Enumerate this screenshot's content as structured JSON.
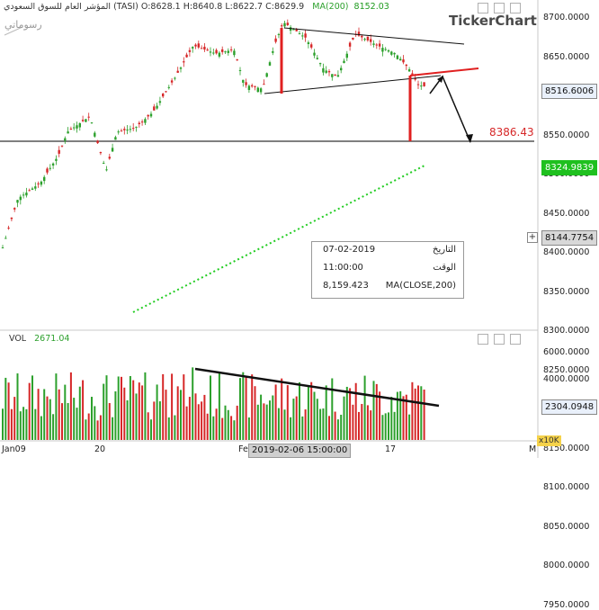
{
  "header": {
    "symbol": "المؤشر العام للسوق السعودي (TASI)",
    "open": "O:8628.1",
    "high": "H:8640.8",
    "low": "L:8622.7",
    "close": "C:8629.9",
    "ma_label": "MA(200)",
    "ma_value": "8152.03"
  },
  "watermark_left": "رسوماتي",
  "logo_text": "TickerChart",
  "y_axis": {
    "ticks": [
      "8700.0000",
      "8650.0000",
      "8600.0000",
      "8550.0000",
      "8500.0000",
      "8450.0000",
      "8400.0000",
      "8350.0000",
      "8300.0000",
      "8250.0000",
      "8200.0000",
      "8150.0000",
      "8100.0000",
      "8050.0000",
      "8000.0000",
      "7950.0000"
    ]
  },
  "price_labels": {
    "last": "8516.6006",
    "ma": "8324.9839",
    "cursor": "8144.7754",
    "target": "8386.43"
  },
  "tooltip": {
    "date_label": "التاريخ",
    "date_value": "07-02-2019",
    "time_label": "الوقت",
    "time_value": "11:00:00",
    "ma_label": "MA(CLOSE,200)",
    "ma_value": "8,159.423"
  },
  "volume": {
    "label": "VOL",
    "value": "2671.04",
    "ticks": [
      "6000.0000",
      "4000.0000"
    ],
    "last": "2304.0948",
    "unit": "x10K"
  },
  "x_axis": {
    "ticks": [
      "Jan09",
      "20",
      "Fe",
      "17",
      "M"
    ],
    "cursor": "2019-02-06 15:00:00"
  },
  "colors": {
    "up": "#2ca02c",
    "down": "#d62728",
    "ma": "#22cc22",
    "trend": "#111111",
    "target_line": "#e02020"
  },
  "chart_data": {
    "type": "candlestick",
    "price_range": [
      7910,
      8725
    ],
    "volume_range": [
      0,
      6500
    ],
    "ma_value": 8152.03,
    "target": 8386.43,
    "last_close": 8516.6006
  }
}
